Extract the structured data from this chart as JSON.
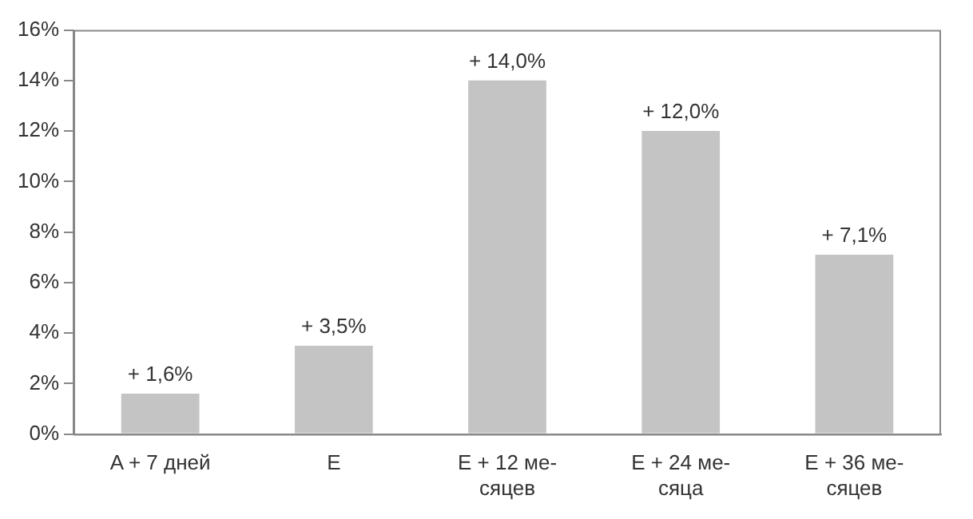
{
  "chart_data": {
    "type": "bar",
    "categories": [
      "A + 7 дней",
      "E",
      "E + 12 ме-\nсяцев",
      "E + 24 ме-\nсяца",
      "E + 36 ме-\nсяцев"
    ],
    "values": [
      1.6,
      3.5,
      14.0,
      12.0,
      7.1
    ],
    "value_labels": [
      "+ 1,6%",
      "+ 3,5%",
      "+ 14,0%",
      "+ 12,0%",
      "+ 7,1%"
    ],
    "color": "#c4c4c4",
    "ylim": [
      0,
      16
    ],
    "yticks": [
      {
        "value": 0,
        "label": "0%"
      },
      {
        "value": 2,
        "label": "2%"
      },
      {
        "value": 4,
        "label": "4%"
      },
      {
        "value": 6,
        "label": "6%"
      },
      {
        "value": 8,
        "label": "8%"
      },
      {
        "value": 10,
        "label": "10%"
      },
      {
        "value": 12,
        "label": "12%"
      },
      {
        "value": 14,
        "label": "14%"
      },
      {
        "value": 16,
        "label": "16%"
      }
    ],
    "grid": false,
    "legend": false
  }
}
